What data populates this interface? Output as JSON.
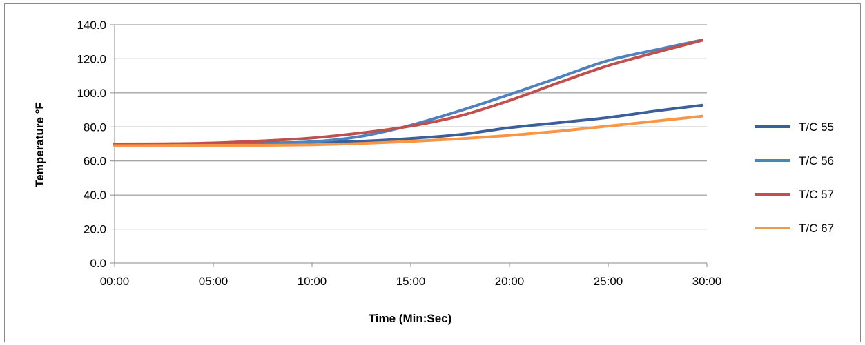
{
  "chart_data": {
    "type": "line",
    "title": "",
    "xlabel": "Time (Min:Sec)",
    "ylabel": "Temperature °F",
    "xlim": [
      0,
      30
    ],
    "ylim": [
      0,
      140
    ],
    "x_ticks": [
      "00:00",
      "05:00",
      "10:00",
      "15:00",
      "20:00",
      "25:00",
      "30:00"
    ],
    "y_ticks": [
      "0.0",
      "20.0",
      "40.0",
      "60.0",
      "80.0",
      "100.0",
      "120.0",
      "140.0"
    ],
    "grid": "horizontal",
    "legend_position": "right",
    "x": [
      0,
      2.5,
      5,
      7.5,
      10,
      12.5,
      15,
      17.5,
      20,
      22.5,
      25,
      27.5,
      29.75
    ],
    "series": [
      {
        "name": "T/C 55",
        "color": "#3a5f9a",
        "values": [
          69.5,
          69.6,
          70.0,
          70.5,
          71.0,
          71.6,
          73.2,
          75.5,
          79.5,
          82.5,
          85.5,
          89.5,
          92.7
        ]
      },
      {
        "name": "T/C 56",
        "color": "#4f81bd",
        "values": [
          69.5,
          69.6,
          70.0,
          70.4,
          71.3,
          74.5,
          81.0,
          89.5,
          99.0,
          109.0,
          119.0,
          125.5,
          131.0
        ]
      },
      {
        "name": "T/C 57",
        "color": "#c0504d",
        "values": [
          70.0,
          70.1,
          70.6,
          71.8,
          73.5,
          76.5,
          80.5,
          86.5,
          95.5,
          106.0,
          116.0,
          124.0,
          130.8
        ]
      },
      {
        "name": "T/C 67",
        "color": "#f79646",
        "values": [
          69.0,
          69.1,
          69.2,
          69.2,
          69.5,
          70.3,
          71.5,
          73.0,
          75.0,
          77.5,
          80.5,
          83.5,
          86.3
        ]
      }
    ]
  }
}
